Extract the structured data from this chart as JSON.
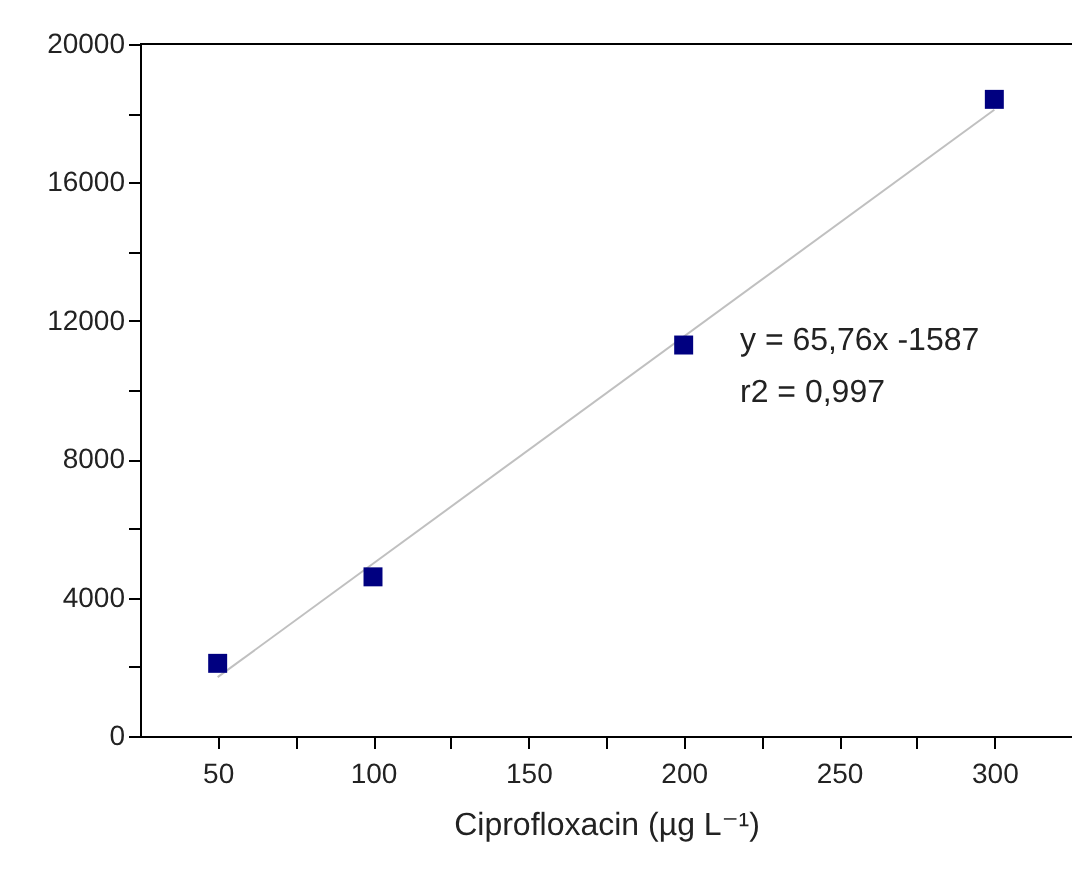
{
  "chart_data": {
    "type": "scatter",
    "xlabel": "Ciprofloxacin (µg L⁻¹)",
    "x": [
      50,
      100,
      200,
      300
    ],
    "series": [
      {
        "color": "#000080",
        "values": [
          2100,
          4600,
          11300,
          18400
        ],
        "marker": "square"
      },
      {
        "type": "line",
        "color": "#c0c0c0",
        "x": [
          50,
          300
        ],
        "values": [
          1700,
          18100
        ],
        "line_style": "solid",
        "marker": "none"
      }
    ],
    "annotations": [
      "y = 65,76x -1587",
      "r2 = 0,997"
    ],
    "xlim": [
      25,
      325
    ],
    "xticks": [
      50,
      {
        "value": 75,
        "label": null
      },
      100,
      {
        "value": 125,
        "label": null
      },
      150,
      {
        "value": 175,
        "label": null
      },
      200,
      {
        "value": 225,
        "label": null
      },
      250,
      {
        "value": 275,
        "label": null
      },
      300
    ],
    "ylim": [
      0,
      20000
    ],
    "yticks": [
      0,
      {
        "value": 2000,
        "label": null
      },
      4000,
      {
        "value": 6000,
        "label": null
      },
      8000,
      {
        "value": 10000,
        "label": null
      },
      12000,
      {
        "value": 14000,
        "label": null
      },
      16000,
      {
        "value": 18000,
        "label": null
      },
      20000
    ],
    "grid": false,
    "legend": false
  }
}
